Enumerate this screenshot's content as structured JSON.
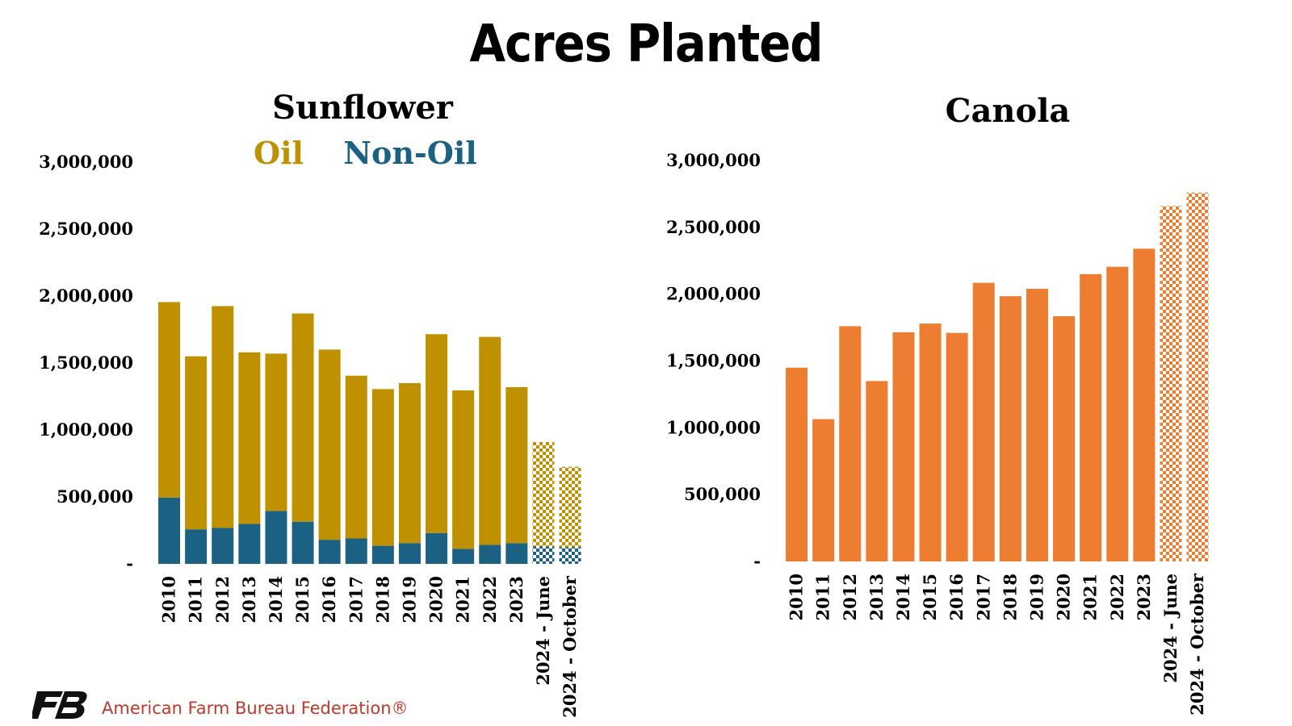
{
  "page_title": "Acres Planted",
  "footer": {
    "org_name": "American Farm Bureau Federation®"
  },
  "colors": {
    "oil": "#BF9000",
    "non_oil": "#1B6184",
    "canola": "#ED7D31"
  },
  "chart_data": [
    {
      "type": "bar",
      "stacked": true,
      "title": "Sunflower",
      "categories": [
        "2010",
        "2011",
        "2012",
        "2013",
        "2014",
        "2015",
        "2016",
        "2017",
        "2018",
        "2019",
        "2020",
        "2021",
        "2022",
        "2023",
        "2024 - June",
        "2024 - October"
      ],
      "series": [
        {
          "name": "Non-Oil",
          "color": "#1B6184",
          "values": [
            495000,
            258000,
            268000,
            298000,
            395000,
            315000,
            180000,
            190000,
            135000,
            155000,
            230000,
            112000,
            142000,
            155000,
            130000,
            125000
          ]
        },
        {
          "name": "Oil",
          "color": "#BF9000",
          "values": [
            1460000,
            1292000,
            1657000,
            1282000,
            1175000,
            1555000,
            1420000,
            1215000,
            1170000,
            1195000,
            1485000,
            1183000,
            1553000,
            1165000,
            780000,
            600000
          ]
        }
      ],
      "ylim": [
        0,
        3000000
      ],
      "yticks": [
        "-",
        "500,000",
        "1,000,000",
        "1,500,000",
        "2,000,000",
        "2,500,000",
        "3,000,000"
      ],
      "ytick_values": [
        0,
        500000,
        1000000,
        1500000,
        2000000,
        2500000,
        3000000
      ],
      "projected_pattern": "checkered",
      "projected_categories": [
        "2024 - June",
        "2024 - October"
      ],
      "grid": false,
      "legend_placement": "top-center"
    },
    {
      "type": "bar",
      "title": "Canola",
      "categories": [
        "2010",
        "2011",
        "2012",
        "2013",
        "2014",
        "2015",
        "2016",
        "2017",
        "2018",
        "2019",
        "2020",
        "2021",
        "2022",
        "2023",
        "2024 - June",
        "2024 - October"
      ],
      "series": [
        {
          "color": "#ED7D31",
          "values": [
            1450000,
            1065000,
            1760000,
            1350000,
            1715000,
            1780000,
            1710000,
            2085000,
            1985000,
            2040000,
            1835000,
            2150000,
            2205000,
            2340000,
            2660000,
            2760000
          ]
        }
      ],
      "ylim": [
        0,
        3000000
      ],
      "yticks": [
        "-",
        "500,000",
        "1,000,000",
        "1,500,000",
        "2,000,000",
        "2,500,000",
        "3,000,000"
      ],
      "ytick_values": [
        0,
        500000,
        1000000,
        1500000,
        2000000,
        2500000,
        3000000
      ],
      "projected_pattern": "checkered",
      "projected_categories": [
        "2024 - June",
        "2024 - October"
      ],
      "grid": false
    }
  ]
}
